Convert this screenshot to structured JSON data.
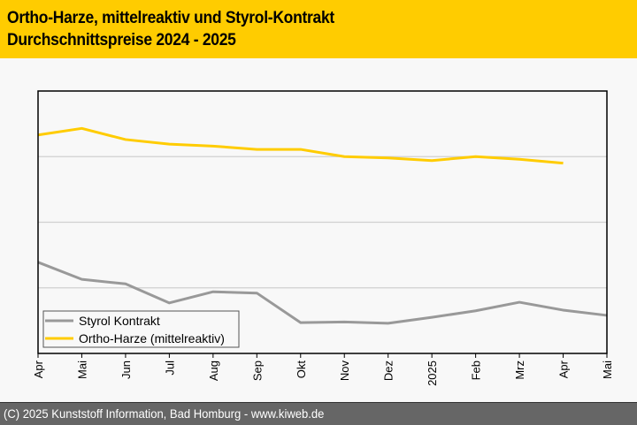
{
  "header": {
    "title_line1": "Ortho-Harze, mittelreaktiv und Styrol-Kontrakt",
    "title_line2": "Durchschnittspreise 2024 - 2025"
  },
  "footer": {
    "copyright": "(C) 2025 Kunststoff Information, Bad Homburg - www.kiweb.de"
  },
  "colors": {
    "header_bg": "#ffcc00",
    "footer_bg": "#666666",
    "styrol": "#999999",
    "ortho": "#ffcc00",
    "grid": "#d0d0d0"
  },
  "chart_data": {
    "type": "line",
    "title": "Ortho-Harze, mittelreaktiv und Styrol-Kontrakt — Durchschnittspreise 2024 - 2025",
    "xlabel": "",
    "ylabel": "",
    "y_tick_labels_visible": false,
    "ylim": [
      0,
      4
    ],
    "y_note": "relative units (no y-axis labels shown); 1 unit = one gridline band",
    "grid": true,
    "legend_position": "bottom-left",
    "categories": [
      "Apr",
      "Mai",
      "Jun",
      "Jul",
      "Aug",
      "Sep",
      "Okt",
      "Nov",
      "Dez",
      "2025",
      "Feb",
      "Mrz",
      "Apr",
      "Mai"
    ],
    "series": [
      {
        "name": "Styrol Kontrakt",
        "color": "#999999",
        "values": [
          1.39,
          1.13,
          1.06,
          0.77,
          0.94,
          0.92,
          0.47,
          0.48,
          0.46,
          0.55,
          0.65,
          0.78,
          0.66,
          0.58
        ]
      },
      {
        "name": "Ortho-Harze (mittelreaktiv)",
        "color": "#ffcc00",
        "values": [
          3.33,
          3.43,
          3.26,
          3.19,
          3.16,
          3.11,
          3.11,
          3.0,
          2.98,
          2.94,
          3.0,
          2.96,
          2.9,
          null
        ]
      }
    ]
  }
}
